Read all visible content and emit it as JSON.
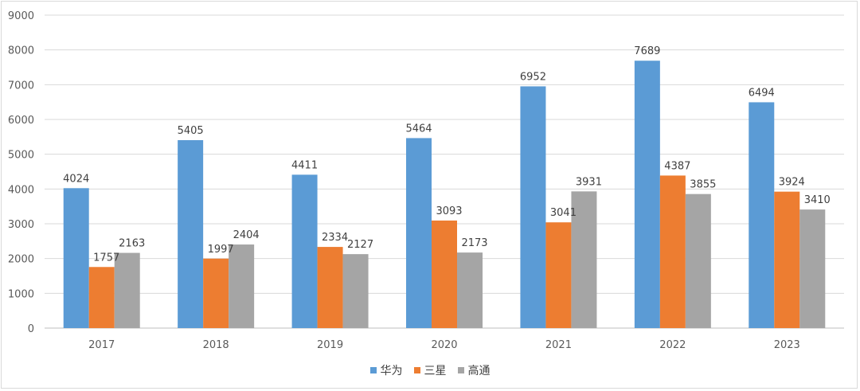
{
  "chart_data": {
    "type": "bar",
    "categories": [
      "2017",
      "2018",
      "2019",
      "2020",
      "2021",
      "2022",
      "2023"
    ],
    "series": [
      {
        "name": "华为",
        "color": "#5b9bd5",
        "values": [
          4024,
          5405,
          4411,
          5464,
          6952,
          7689,
          6494
        ]
      },
      {
        "name": "三星",
        "color": "#ed7d31",
        "values": [
          1757,
          1997,
          2334,
          3093,
          3041,
          4387,
          3924
        ]
      },
      {
        "name": "高通",
        "color": "#a5a5a5",
        "values": [
          2163,
          2404,
          2127,
          2173,
          3931,
          3855,
          3410
        ]
      }
    ],
    "yticks": [
      "0",
      "1000",
      "2000",
      "3000",
      "4000",
      "5000",
      "6000",
      "7000",
      "8000",
      "9000"
    ],
    "ylim": [
      0,
      9000
    ],
    "grid": true,
    "legend_position": "bottom"
  }
}
